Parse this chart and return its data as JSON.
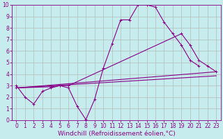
{
  "xlabel": "Windchill (Refroidissement éolien,°C)",
  "xlim": [
    -0.5,
    23.5
  ],
  "ylim": [
    0,
    10
  ],
  "xticks": [
    0,
    1,
    2,
    3,
    4,
    5,
    6,
    7,
    8,
    9,
    10,
    11,
    12,
    13,
    14,
    15,
    16,
    17,
    18,
    19,
    20,
    21,
    22,
    23
  ],
  "yticks": [
    0,
    1,
    2,
    3,
    4,
    5,
    6,
    7,
    8,
    9,
    10
  ],
  "background_color": "#c6ecee",
  "grid_color": "#b0b0b0",
  "line_color": "#880088",
  "line1_x": [
    0,
    1,
    2,
    3,
    4,
    5,
    6,
    7,
    8,
    9,
    10,
    11,
    12,
    13,
    14,
    15,
    16,
    17,
    18,
    19,
    20,
    21
  ],
  "line1_y": [
    3.0,
    2.0,
    1.4,
    2.5,
    2.8,
    3.0,
    2.8,
    1.2,
    0.05,
    1.8,
    4.5,
    6.6,
    8.7,
    8.7,
    10.0,
    10.0,
    9.8,
    8.5,
    7.5,
    6.5,
    5.2,
    4.7
  ],
  "line2_x": [
    0,
    23
  ],
  "line2_y": [
    2.8,
    4.2
  ],
  "line3_x": [
    0,
    23
  ],
  "line3_y": [
    2.8,
    3.85
  ],
  "line4_x": [
    0,
    4,
    5,
    6,
    19,
    20,
    21,
    22,
    23
  ],
  "line4_y": [
    2.8,
    2.9,
    3.0,
    3.0,
    7.5,
    6.5,
    5.2,
    4.7,
    4.2
  ],
  "font_size": 6.5,
  "tick_font_size": 5.5,
  "linewidth": 0.8,
  "markersize": 3
}
